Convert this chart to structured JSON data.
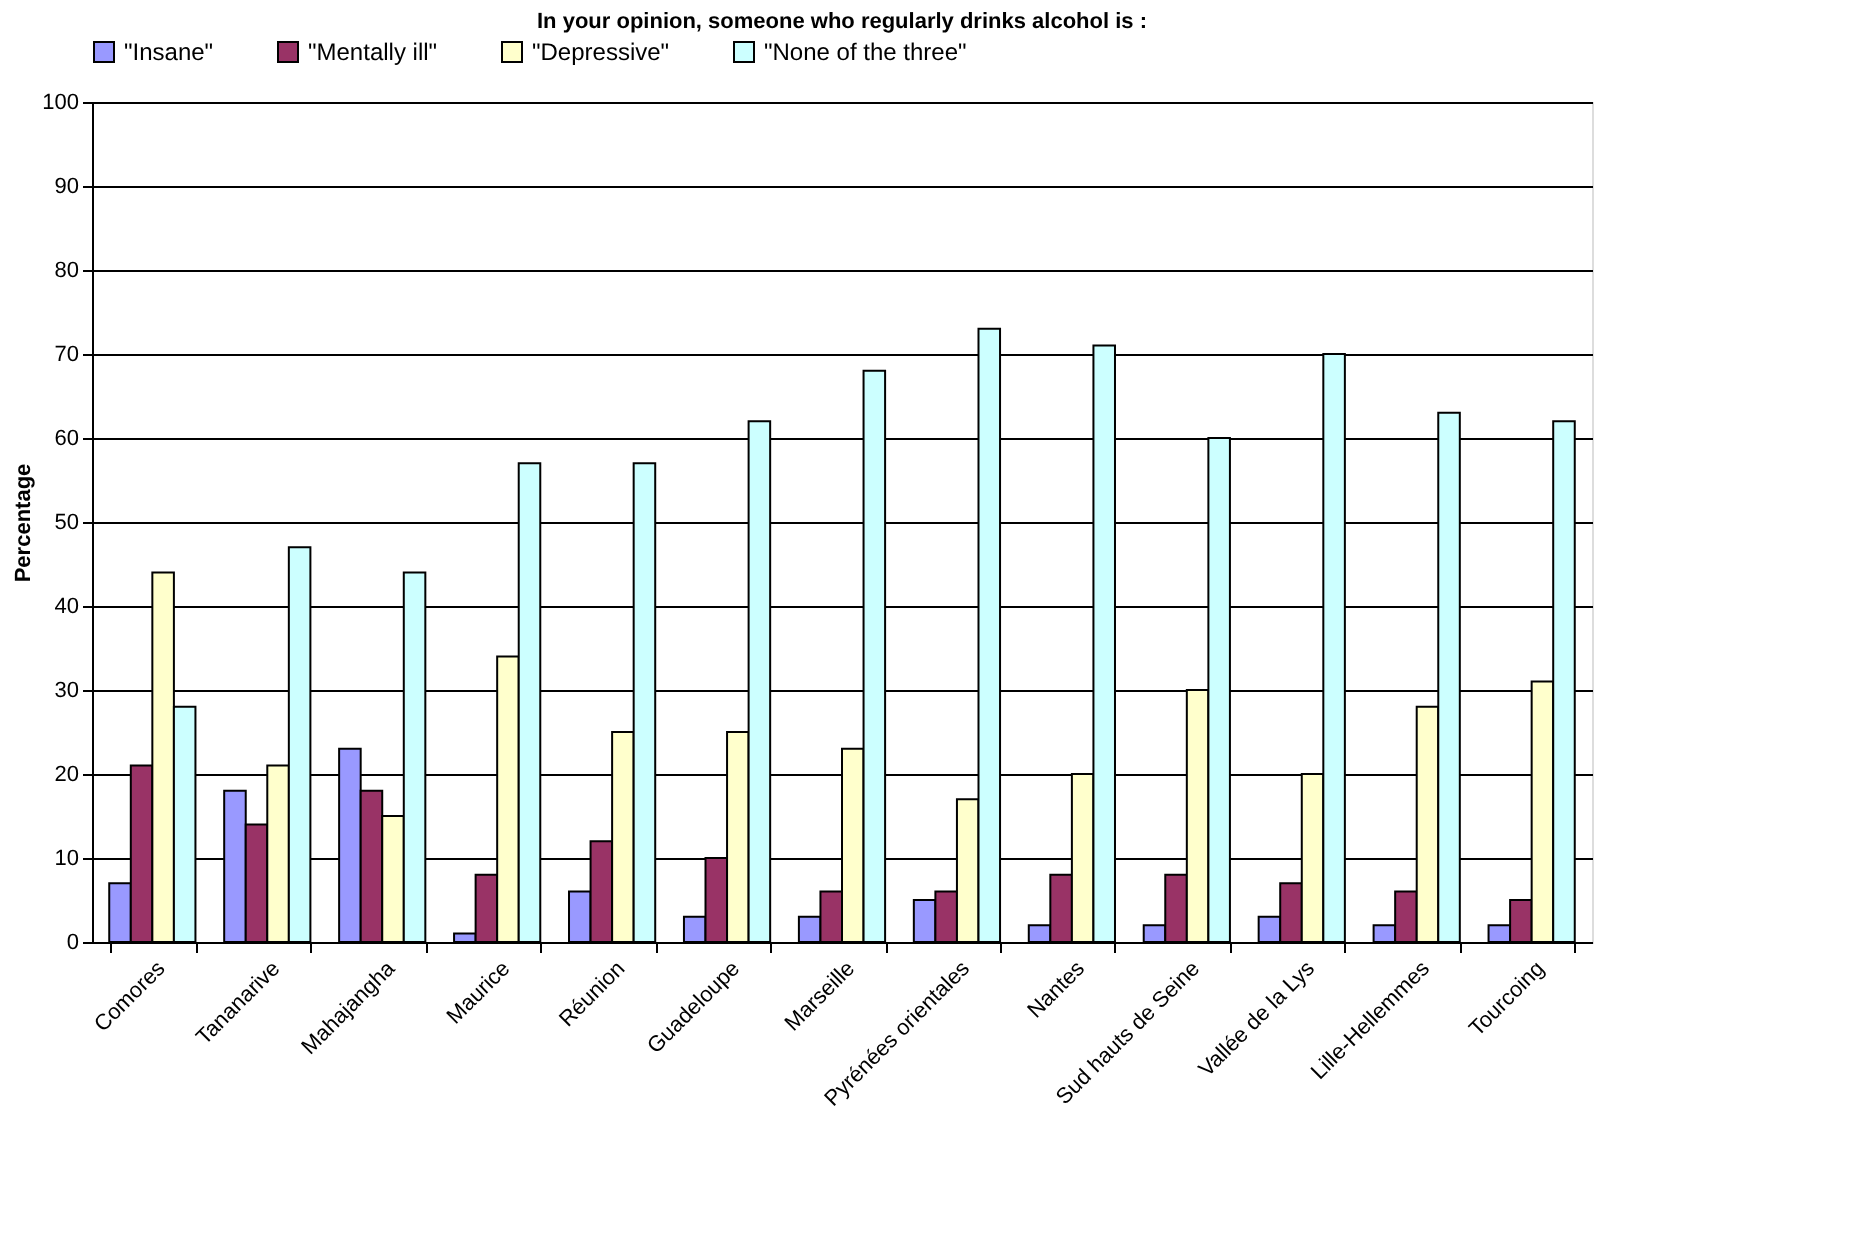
{
  "chart_data": {
    "type": "bar",
    "title": "In your opinion, someone who regularly drinks alcohol is :",
    "ylabel": "Percentage",
    "categories": [
      "Comores",
      "Tananarive",
      "Mahajangha",
      "Maurice",
      "Réunion",
      "Guadeloupe",
      "Marseille",
      "Pyrénées orientales",
      "Nantes",
      "Sud hauts de Seine",
      "Vallée de la Lys",
      "Lille-Hellemmes",
      "Tourcoing"
    ],
    "series": [
      {
        "name": "\"Insane\"",
        "color": "#9999ff",
        "values": [
          7,
          18,
          23,
          1,
          6,
          3,
          3,
          5,
          2,
          2,
          3,
          2,
          2
        ]
      },
      {
        "name": "\"Mentally ill\"",
        "color": "#993366",
        "values": [
          21,
          14,
          18,
          8,
          12,
          10,
          6,
          6,
          8,
          8,
          7,
          6,
          5
        ]
      },
      {
        "name": "\"Depressive\"",
        "color": "#ffffcc",
        "values": [
          44,
          21,
          15,
          34,
          25,
          25,
          23,
          17,
          20,
          30,
          20,
          28,
          31
        ]
      },
      {
        "name": "\"None of the three\"",
        "color": "#ccffff",
        "values": [
          28,
          47,
          44,
          57,
          57,
          62,
          68,
          73,
          71,
          60,
          70,
          63,
          62
        ]
      }
    ],
    "ylim": [
      0,
      100
    ],
    "yticks": [
      0,
      10,
      20,
      30,
      40,
      50,
      60,
      70,
      80,
      90,
      100
    ],
    "grid": "y",
    "legend": "top"
  }
}
